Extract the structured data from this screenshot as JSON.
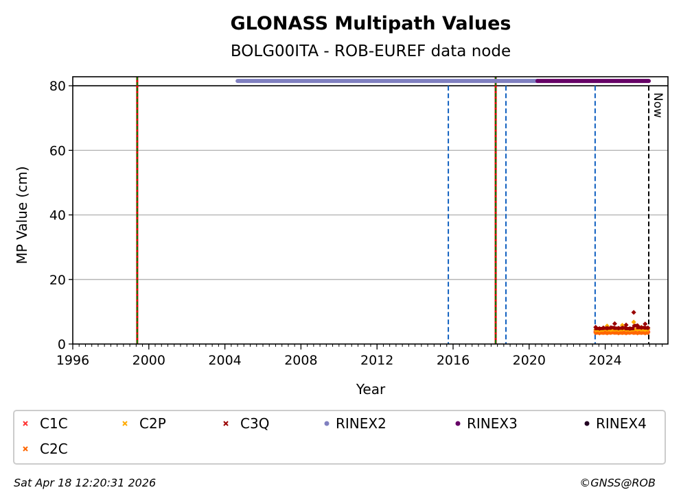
{
  "chart_data": {
    "type": "scatter",
    "title": "GLONASS Multipath Values",
    "subtitle": "BOLG00ITA - ROB-EUREF data node",
    "xlabel": "Year",
    "ylabel": "MP Value (cm)",
    "xlim": [
      1996,
      2027.3
    ],
    "ylim": [
      0,
      82.8
    ],
    "xticks": [
      "1996",
      "2000",
      "2004",
      "2008",
      "2012",
      "2016",
      "2020",
      "2024"
    ],
    "yticks": [
      "0",
      "20",
      "40",
      "60",
      "80"
    ],
    "grid": "horizontal",
    "legend_placement": "bottom",
    "series": [
      {
        "name": "C1C",
        "color": "#ff3333",
        "marker": "x",
        "x": [
          2023.5,
          2023.7,
          2023.9,
          2024.1,
          2024.3,
          2024.5,
          2024.7,
          2024.9,
          2025.1,
          2025.3,
          2025.5,
          2025.7,
          2025.9,
          2026.1,
          2026.25
        ],
        "y": [
          3.9,
          3.8,
          3.9,
          3.7,
          3.8,
          4.0,
          3.8,
          3.9,
          3.7,
          3.8,
          3.9,
          3.8,
          3.9,
          3.8,
          3.9
        ]
      },
      {
        "name": "C2C",
        "color": "#ff6600",
        "marker": "x",
        "x": [
          2023.5,
          2023.7,
          2023.9,
          2024.1,
          2024.3,
          2024.5,
          2024.7,
          2024.9,
          2025.1,
          2025.3,
          2025.5,
          2025.7,
          2025.9,
          2026.1,
          2026.25
        ],
        "y": [
          3.5,
          3.4,
          3.5,
          3.4,
          3.5,
          3.6,
          3.4,
          3.5,
          3.4,
          3.5,
          3.5,
          3.4,
          3.5,
          3.4,
          3.5
        ]
      },
      {
        "name": "C2P",
        "color": "#ffaa00",
        "marker": "x",
        "x": [
          2023.5,
          2023.7,
          2023.9,
          2024.1,
          2024.3,
          2024.5,
          2024.7,
          2024.9,
          2025.1,
          2025.3,
          2025.5,
          2025.7,
          2025.9,
          2026.1,
          2026.25
        ],
        "y": [
          4.4,
          4.3,
          4.5,
          5.6,
          4.4,
          4.6,
          4.4,
          5.8,
          4.5,
          4.4,
          6.8,
          4.5,
          5.2,
          4.4,
          4.5
        ]
      },
      {
        "name": "C3Q",
        "color": "#990000",
        "marker": "x",
        "x": [
          2023.5,
          2023.7,
          2023.9,
          2024.1,
          2024.3,
          2024.5,
          2024.7,
          2024.9,
          2025.1,
          2025.3,
          2025.5,
          2025.7,
          2025.9,
          2026.1,
          2026.25
        ],
        "y": [
          5.2,
          4.8,
          5.0,
          4.9,
          5.1,
          6.3,
          4.9,
          5.0,
          5.9,
          4.8,
          9.8,
          5.7,
          5.1,
          6.2,
          5.0
        ]
      },
      {
        "name": "RINEX2",
        "color": "#8080c0",
        "marker": "o",
        "x": [
          2004.67,
          2020.44
        ],
        "y": [
          81.5,
          81.5
        ]
      },
      {
        "name": "RINEX3",
        "color": "#660066",
        "marker": "o",
        "x": [
          2020.44,
          2026.29
        ],
        "y": [
          81.5,
          81.5
        ]
      },
      {
        "name": "RINEX4",
        "color": "#220022",
        "marker": "o",
        "x": [],
        "y": []
      }
    ],
    "vlines": [
      {
        "x": 1999.39,
        "style": "red-green"
      },
      {
        "x": 2018.24,
        "style": "red-green"
      },
      {
        "x": 2015.75,
        "style": "blue-dashed",
        "color": "#1060c0"
      },
      {
        "x": 2018.78,
        "style": "blue-dashed",
        "color": "#1060c0"
      },
      {
        "x": 2023.47,
        "style": "blue-dashed",
        "color": "#1060c0"
      },
      {
        "x": 2026.29,
        "style": "black-dashed",
        "label": "Now"
      }
    ]
  },
  "footer": {
    "timestamp": "Sat Apr 18 12:20:31 2026",
    "credit": "©GNSS@ROB"
  }
}
